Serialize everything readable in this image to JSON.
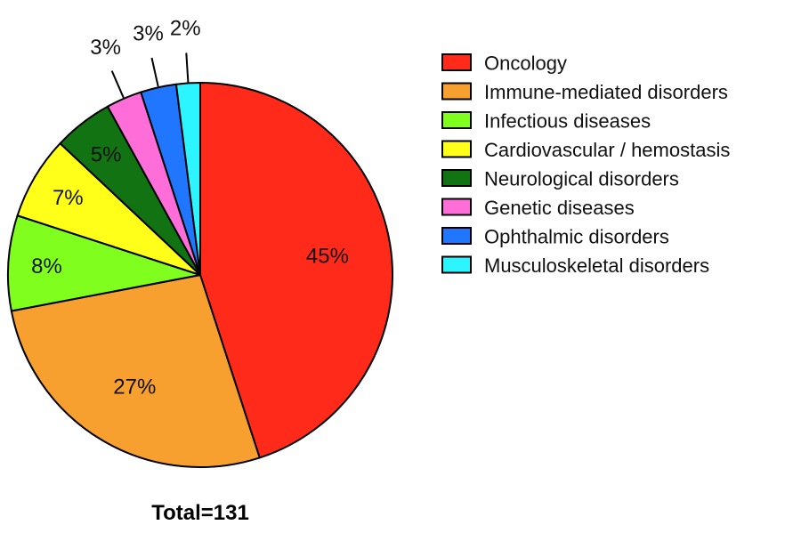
{
  "chart_data": {
    "type": "pie",
    "slices": [
      {
        "label": "Oncology",
        "value": 45,
        "display": "45%",
        "color": "#ff2a1a"
      },
      {
        "label": "Immune-mediated disorders",
        "value": 27,
        "display": "27%",
        "color": "#f7a030"
      },
      {
        "label": "Infectious diseases",
        "value": 8,
        "display": "8%",
        "color": "#80ff1f"
      },
      {
        "label": "Cardiovascular / hemostasis",
        "value": 7,
        "display": "7%",
        "color": "#ffff1a"
      },
      {
        "label": "Neurological disorders",
        "value": 5,
        "display": "5%",
        "color": "#127312"
      },
      {
        "label": "Genetic diseases",
        "value": 3,
        "display": "3%",
        "color": "#ff6ed8"
      },
      {
        "label": "Ophthalmic disorders",
        "value": 3,
        "display": "3%",
        "color": "#2176ff"
      },
      {
        "label": "Musculoskeletal disorders",
        "value": 2,
        "display": "2%",
        "color": "#2cf5ff"
      }
    ],
    "legend_position": "right",
    "total_label": "Total=131"
  }
}
